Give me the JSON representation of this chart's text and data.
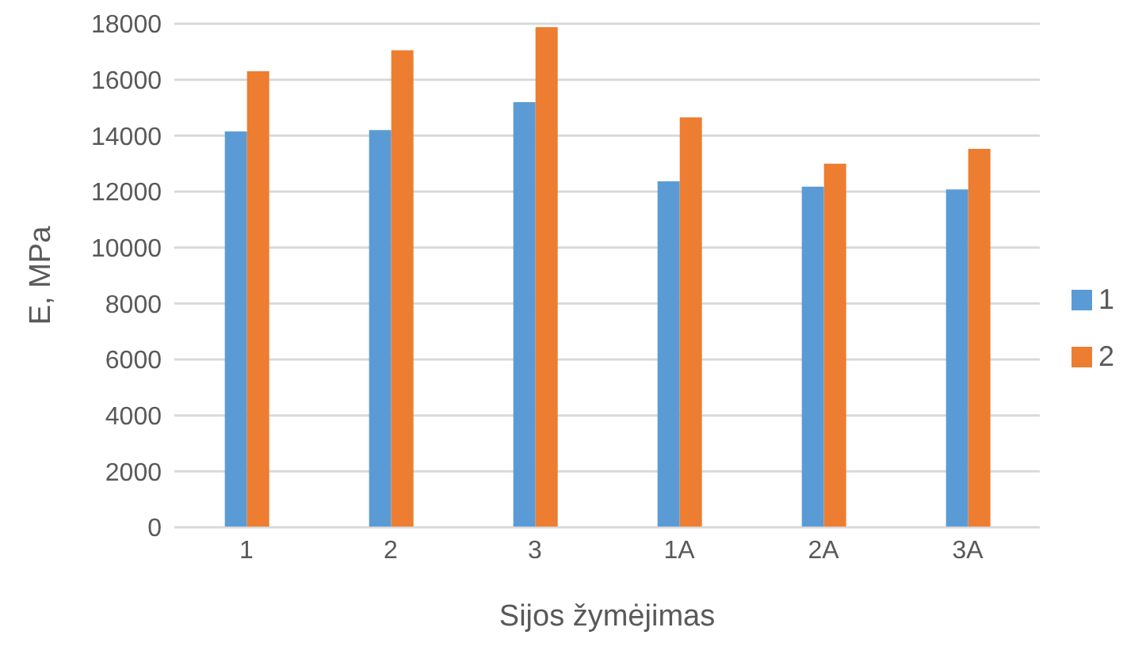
{
  "chart_data": {
    "type": "bar",
    "xlabel": "Sijos žymėjimas",
    "ylabel": "E, MPa",
    "categories": [
      "1",
      "2",
      "3",
      "1A",
      "2A",
      "3A"
    ],
    "series": [
      {
        "name": "1",
        "color": "#5b9bd5",
        "values": [
          14150,
          14200,
          15200,
          12370,
          12180,
          12080
        ]
      },
      {
        "name": "2",
        "color": "#ed7d31",
        "values": [
          16300,
          17050,
          17880,
          14650,
          13000,
          13530
        ]
      }
    ],
    "ylim": [
      0,
      18000
    ],
    "yticks": [
      0,
      2000,
      4000,
      6000,
      8000,
      10000,
      12000,
      14000,
      16000,
      18000
    ],
    "grid": "y",
    "legend": "right"
  }
}
